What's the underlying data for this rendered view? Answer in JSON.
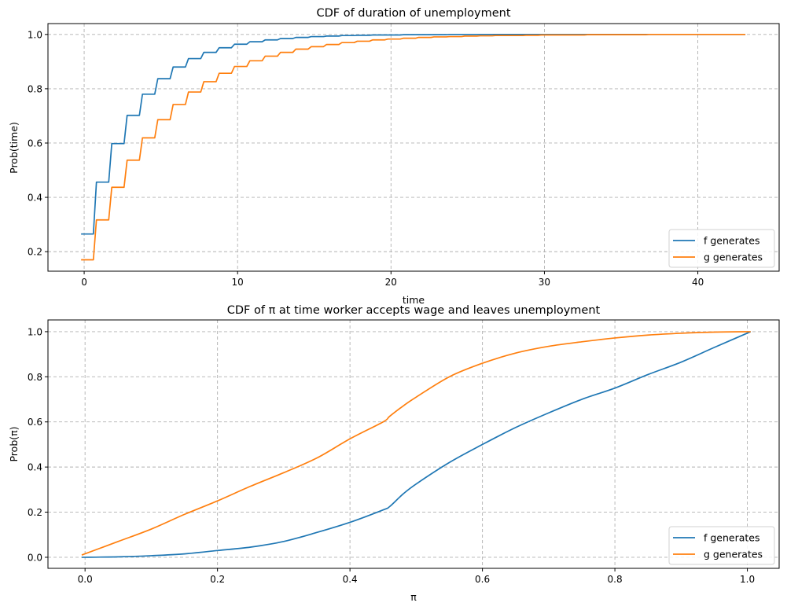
{
  "chart_data": [
    {
      "type": "line",
      "title": "CDF of duration of unemployment",
      "xlabel": "time",
      "ylabel": "Prob(time)",
      "xlim": [
        -2.36,
        45.3
      ],
      "ylim": [
        0.128,
        1.04
      ],
      "xticks": [
        "0",
        "10",
        "20",
        "30",
        "40"
      ],
      "yticks": [
        "0.2",
        "0.4",
        "0.6",
        "0.8",
        "1.0"
      ],
      "grid": true,
      "legend_placement": "lower-right",
      "x": [
        0,
        1,
        2,
        3,
        4,
        5,
        6,
        7,
        8,
        9,
        10,
        11,
        12,
        13,
        14,
        15,
        16,
        17,
        18,
        19,
        20,
        21,
        22,
        23,
        24,
        25,
        26,
        27,
        28,
        29,
        30,
        31,
        32,
        33,
        34,
        35,
        36,
        37,
        38,
        39,
        40,
        41,
        42,
        43
      ],
      "series": [
        {
          "name": "f generates",
          "color": "#1f77b4",
          "values": [
            0.265,
            0.456,
            0.598,
            0.702,
            0.78,
            0.837,
            0.88,
            0.911,
            0.934,
            0.951,
            0.964,
            0.973,
            0.98,
            0.985,
            0.989,
            0.992,
            0.994,
            0.996,
            0.997,
            0.998,
            0.998,
            0.999,
            0.999,
            0.999,
            1.0,
            1.0,
            1.0,
            1.0,
            1.0,
            1.0,
            1.0,
            1.0,
            1.0,
            1.0,
            1.0,
            1.0,
            1.0,
            1.0,
            1.0,
            1.0,
            1.0,
            1.0,
            1.0,
            1.0
          ]
        },
        {
          "name": "g generates",
          "color": "#ff7f0e",
          "values": [
            0.17,
            0.317,
            0.437,
            0.537,
            0.619,
            0.686,
            0.742,
            0.788,
            0.826,
            0.857,
            0.882,
            0.903,
            0.92,
            0.934,
            0.946,
            0.955,
            0.963,
            0.97,
            0.975,
            0.98,
            0.983,
            0.986,
            0.989,
            0.991,
            0.992,
            0.994,
            0.995,
            0.996,
            0.996,
            0.997,
            0.998,
            0.998,
            0.998,
            0.999,
            0.999,
            0.999,
            0.999,
            1.0,
            1.0,
            1.0,
            1.0,
            1.0,
            1.0,
            1.0
          ]
        }
      ]
    },
    {
      "type": "line",
      "title": "CDF of π at time worker accepts wage and leaves unemployment",
      "xlabel": "π",
      "ylabel": "Prob(π)",
      "xlim": [
        -0.056,
        1.048
      ],
      "ylim": [
        -0.049,
        1.052
      ],
      "xticks": [
        "0.0",
        "0.2",
        "0.4",
        "0.6",
        "0.8",
        "1.0"
      ],
      "yticks": [
        "0.0",
        "0.2",
        "0.4",
        "0.6",
        "0.8",
        "1.0"
      ],
      "grid": true,
      "legend_placement": "lower-right",
      "x": [
        -0.005,
        0.05,
        0.1,
        0.15,
        0.2,
        0.25,
        0.3,
        0.35,
        0.4,
        0.45,
        0.46,
        0.48,
        0.5,
        0.55,
        0.6,
        0.65,
        0.7,
        0.75,
        0.8,
        0.85,
        0.9,
        0.95,
        1.005
      ],
      "series": [
        {
          "name": "f generates",
          "color": "#1f77b4",
          "values": [
            0.0,
            0.002,
            0.007,
            0.015,
            0.03,
            0.045,
            0.07,
            0.11,
            0.155,
            0.21,
            0.225,
            0.28,
            0.325,
            0.42,
            0.5,
            0.575,
            0.64,
            0.7,
            0.75,
            0.81,
            0.865,
            0.93,
            1.0
          ]
        },
        {
          "name": "g generates",
          "color": "#ff7f0e",
          "values": [
            0.01,
            0.07,
            0.125,
            0.19,
            0.25,
            0.315,
            0.375,
            0.44,
            0.525,
            0.6,
            0.625,
            0.67,
            0.71,
            0.8,
            0.86,
            0.905,
            0.935,
            0.955,
            0.972,
            0.985,
            0.993,
            0.998,
            1.0
          ]
        }
      ]
    }
  ]
}
